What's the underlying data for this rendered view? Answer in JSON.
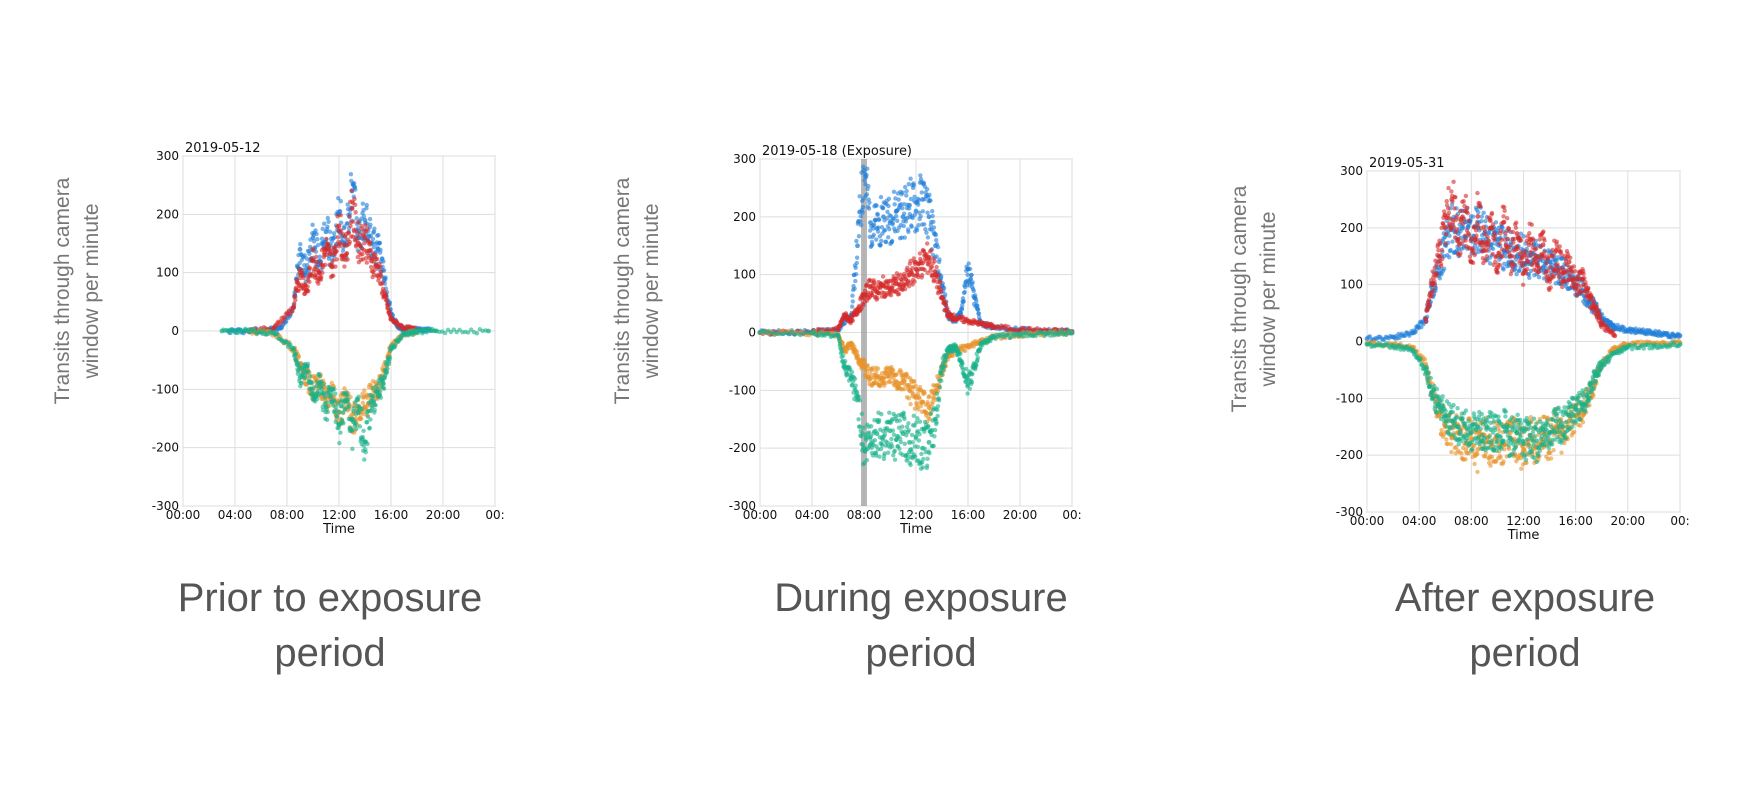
{
  "y_axis_title": [
    "Transits through camera",
    "window per minute"
  ],
  "colors": {
    "blue": "#1f7fd9",
    "red": "#d62a2a",
    "orange": "#e8922a",
    "teal": "#17b08a",
    "exposure_band": "#9a9a9a"
  },
  "chart_data": [
    {
      "type": "scatter",
      "title": "2019-05-12",
      "caption": [
        "Prior to exposure",
        "period"
      ],
      "xlabel": "Time",
      "ylabel": "",
      "xlim": [
        0,
        24
      ],
      "ylim": [
        -300,
        300
      ],
      "xticks": [
        "00:00",
        "04:00",
        "08:00",
        "12:00",
        "16:00",
        "20:00",
        "00:"
      ],
      "yticks": [
        "300",
        "200",
        "100",
        "0",
        "-100",
        "-200",
        "-300"
      ],
      "grid": true,
      "series": [
        {
          "color": "blue",
          "x": [
            3.5,
            5,
            6.5,
            7.5,
            8.5,
            9,
            9.5,
            10,
            10.5,
            11,
            11.5,
            12,
            12.5,
            13,
            13.5,
            14,
            14.5,
            15,
            15.5,
            16,
            16.5,
            17,
            18,
            19
          ],
          "y": [
            0,
            0,
            2,
            5,
            40,
            140,
            100,
            160,
            120,
            170,
            130,
            200,
            150,
            240,
            160,
            190,
            150,
            140,
            90,
            30,
            8,
            3,
            2,
            1
          ]
        },
        {
          "color": "red",
          "x": [
            5,
            7,
            8.5,
            9,
            9.5,
            10,
            10.5,
            11,
            11.5,
            12,
            12.5,
            13,
            13.5,
            14,
            14.5,
            15,
            15.5,
            16,
            17,
            18
          ],
          "y": [
            0,
            5,
            40,
            100,
            70,
            120,
            100,
            140,
            110,
            180,
            130,
            210,
            150,
            160,
            120,
            110,
            60,
            20,
            5,
            2
          ]
        },
        {
          "color": "orange",
          "x": [
            5,
            7,
            8.5,
            9,
            9.5,
            10,
            10.5,
            11,
            11.5,
            12,
            12.5,
            13,
            13.5,
            14,
            14.5,
            15,
            15.5,
            16,
            17,
            18
          ],
          "y": [
            0,
            -4,
            -30,
            -60,
            -80,
            -100,
            -90,
            -120,
            -100,
            -140,
            -120,
            -150,
            -130,
            -130,
            -110,
            -100,
            -70,
            -25,
            -5,
            -2
          ]
        },
        {
          "color": "teal",
          "x": [
            3,
            5,
            7,
            8.5,
            9,
            9.5,
            10,
            10.5,
            11,
            11.5,
            12,
            12.5,
            13,
            13.5,
            14,
            14.5,
            15,
            15.5,
            16,
            17,
            18,
            19.5,
            23.5
          ],
          "y": [
            0,
            0,
            -4,
            -30,
            -80,
            -60,
            -110,
            -90,
            -130,
            -100,
            -160,
            -120,
            -170,
            -140,
            -190,
            -120,
            -110,
            -80,
            -30,
            -5,
            -1,
            0,
            0
          ]
        }
      ]
    },
    {
      "type": "scatter",
      "title": "2019-05-18 (Exposure)",
      "caption": [
        "During exposure",
        "period"
      ],
      "xlabel": "Time",
      "ylabel": "",
      "xlim": [
        0,
        24
      ],
      "ylim": [
        -300,
        300
      ],
      "xticks": [
        "00:00",
        "04:00",
        "08:00",
        "12:00",
        "16:00",
        "20:00",
        "00:"
      ],
      "yticks": [
        "300",
        "200",
        "100",
        "0",
        "-100",
        "-200",
        "-300"
      ],
      "grid": true,
      "exposure_marker_x": 8,
      "series": [
        {
          "color": "blue",
          "x": [
            0,
            2,
            4,
            6,
            7,
            7.5,
            8,
            8.5,
            9,
            9.5,
            10,
            10.5,
            11,
            11.5,
            12,
            12.5,
            13,
            13.5,
            14,
            14.5,
            15,
            15.5,
            16,
            16.5,
            17,
            18,
            20,
            22,
            24
          ],
          "y": [
            0,
            0,
            1,
            5,
            30,
            150,
            280,
            190,
            180,
            200,
            190,
            210,
            200,
            220,
            210,
            230,
            200,
            150,
            80,
            30,
            20,
            40,
            110,
            60,
            15,
            8,
            5,
            3,
            2
          ]
        },
        {
          "color": "red",
          "x": [
            0,
            4,
            6,
            6.5,
            7,
            7.5,
            8,
            8.5,
            9,
            9.5,
            10,
            10.5,
            11,
            11.5,
            12,
            12.5,
            13,
            13.5,
            14,
            14.5,
            15,
            16,
            17,
            18,
            20,
            22,
            24
          ],
          "y": [
            0,
            1,
            5,
            30,
            20,
            40,
            60,
            80,
            70,
            80,
            75,
            85,
            80,
            100,
            110,
            120,
            130,
            100,
            60,
            30,
            25,
            20,
            15,
            10,
            5,
            3,
            1
          ]
        },
        {
          "color": "orange",
          "x": [
            0,
            4,
            6,
            6.5,
            7,
            7.5,
            8,
            8.5,
            9,
            9.5,
            10,
            10.5,
            11,
            11.5,
            12,
            12.5,
            13,
            13.5,
            14,
            14.5,
            15,
            16,
            17,
            18,
            20,
            22,
            24
          ],
          "y": [
            0,
            -1,
            -5,
            -30,
            -20,
            -40,
            -60,
            -80,
            -75,
            -80,
            -70,
            -85,
            -80,
            -100,
            -110,
            -120,
            -130,
            -100,
            -70,
            -40,
            -30,
            -25,
            -15,
            -8,
            -4,
            -2,
            -1
          ]
        },
        {
          "color": "teal",
          "x": [
            0,
            4,
            6,
            6.5,
            7,
            7.5,
            8,
            8.5,
            9,
            9.5,
            10,
            10.5,
            11,
            11.5,
            12,
            12.5,
            13,
            13.5,
            14,
            14.5,
            15,
            15.5,
            16,
            16.5,
            17,
            18,
            20,
            22,
            24
          ],
          "y": [
            0,
            -1,
            -5,
            -60,
            -80,
            -110,
            -200,
            -180,
            -175,
            -180,
            -170,
            -185,
            -175,
            -190,
            -180,
            -200,
            -190,
            -150,
            -60,
            -30,
            -25,
            -50,
            -90,
            -60,
            -20,
            -8,
            -4,
            -2,
            -1
          ]
        }
      ]
    },
    {
      "type": "scatter",
      "title": "2019-05-31",
      "caption": [
        "After exposure",
        "period"
      ],
      "xlabel": "Time",
      "ylabel": "",
      "xlim": [
        0,
        24
      ],
      "ylim": [
        -300,
        300
      ],
      "xticks": [
        "00:00",
        "04:00",
        "08:00",
        "12:00",
        "16:00",
        "20:00",
        "00:"
      ],
      "yticks": [
        "300",
        "200",
        "100",
        "0",
        "-100",
        "-200",
        "-300"
      ],
      "grid": true,
      "series": [
        {
          "color": "blue",
          "x": [
            0,
            2,
            3.5,
            4.5,
            5,
            5.5,
            6,
            6.5,
            7,
            7.5,
            8,
            8.5,
            9,
            9.5,
            10,
            10.5,
            11,
            11.5,
            12,
            12.5,
            13,
            13.5,
            14,
            14.5,
            15,
            15.5,
            16,
            16.5,
            17,
            17.5,
            18,
            18.5,
            19,
            20,
            21,
            22,
            23,
            24
          ],
          "y": [
            5,
            8,
            15,
            40,
            90,
            130,
            170,
            200,
            190,
            210,
            180,
            200,
            190,
            170,
            180,
            160,
            170,
            150,
            160,
            140,
            150,
            130,
            140,
            120,
            130,
            110,
            100,
            90,
            70,
            60,
            40,
            30,
            25,
            20,
            18,
            15,
            12,
            10
          ]
        },
        {
          "color": "red",
          "x": [
            4.5,
            5,
            5.5,
            6,
            6.5,
            7,
            7.5,
            8,
            8.5,
            9,
            9.5,
            10,
            10.5,
            11,
            11.5,
            12,
            12.5,
            13,
            13.5,
            14,
            14.5,
            15,
            15.5,
            16,
            16.5,
            17,
            17.5,
            18,
            19
          ],
          "y": [
            40,
            100,
            150,
            200,
            250,
            180,
            230,
            140,
            220,
            160,
            200,
            130,
            210,
            150,
            190,
            120,
            180,
            140,
            170,
            110,
            160,
            120,
            140,
            100,
            110,
            80,
            60,
            30,
            10
          ]
        },
        {
          "color": "orange",
          "x": [
            0,
            2,
            3.5,
            4.5,
            5,
            5.5,
            6,
            6.5,
            7,
            7.5,
            8,
            8.5,
            9,
            9.5,
            10,
            10.5,
            11,
            11.5,
            12,
            12.5,
            13,
            13.5,
            14,
            14.5,
            15,
            15.5,
            16,
            16.5,
            17,
            17.5,
            18,
            19,
            20,
            22,
            24
          ],
          "y": [
            -3,
            -5,
            -10,
            -40,
            -90,
            -130,
            -150,
            -170,
            -160,
            -180,
            -170,
            -190,
            -165,
            -185,
            -170,
            -180,
            -160,
            -175,
            -190,
            -165,
            -185,
            -160,
            -175,
            -150,
            -165,
            -140,
            -130,
            -120,
            -100,
            -70,
            -40,
            -10,
            -5,
            -3,
            -2
          ]
        },
        {
          "color": "teal",
          "x": [
            0,
            2,
            3.5,
            4.5,
            5,
            5.5,
            6,
            6.5,
            7,
            7.5,
            8,
            8.5,
            9,
            9.5,
            10,
            10.5,
            11,
            11.5,
            12,
            12.5,
            13,
            13.5,
            14,
            14.5,
            15,
            15.5,
            16,
            16.5,
            17,
            17.5,
            18,
            19,
            20,
            22,
            24
          ],
          "y": [
            -5,
            -8,
            -15,
            -50,
            -90,
            -110,
            -130,
            -140,
            -150,
            -145,
            -160,
            -150,
            -170,
            -155,
            -165,
            -150,
            -170,
            -160,
            -180,
            -165,
            -175,
            -155,
            -160,
            -140,
            -150,
            -130,
            -120,
            -110,
            -90,
            -60,
            -40,
            -20,
            -10,
            -8,
            -5
          ]
        }
      ]
    }
  ]
}
